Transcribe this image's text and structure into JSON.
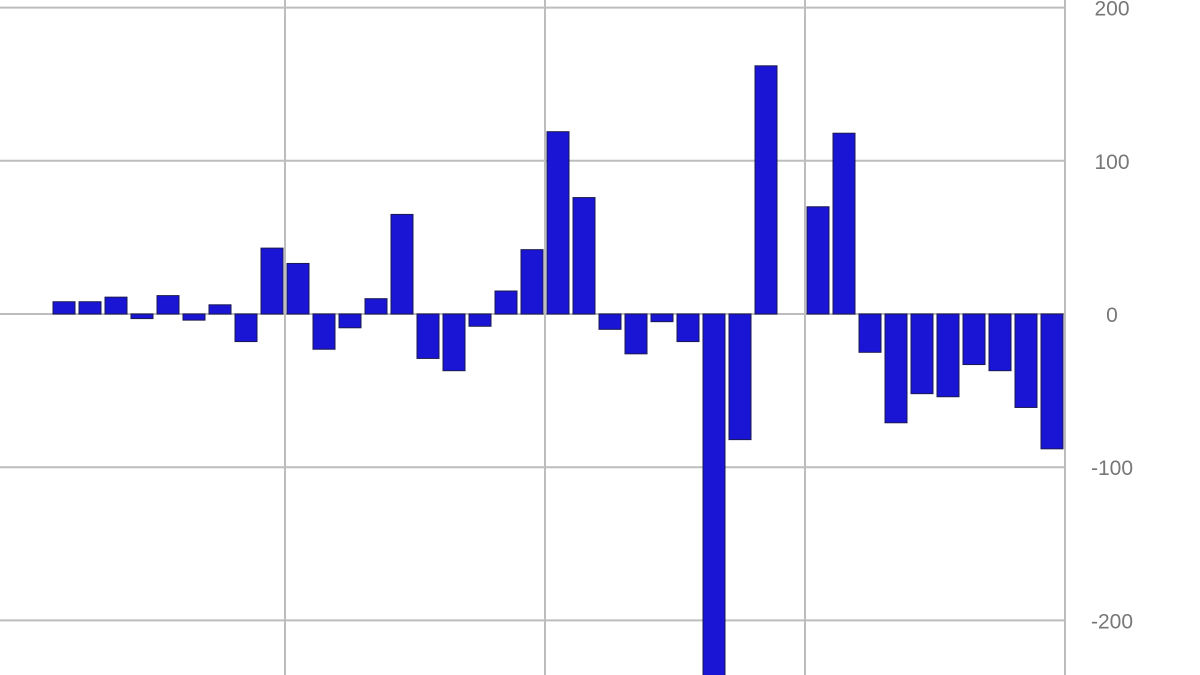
{
  "chart_data": {
    "type": "bar",
    "title": "",
    "xlabel": "",
    "ylabel": "",
    "ylim": [
      -235,
      205
    ],
    "yticks": [
      "200",
      "100",
      "0",
      "-100",
      "-200"
    ],
    "ytick_values": [
      200,
      100,
      0,
      -100,
      -200
    ],
    "y_axis_side": "right",
    "grid": true,
    "vertical_gridlines_after_bar": [
      9,
      19,
      29
    ],
    "bar_color": "#1a14d4",
    "bar_outline": "#1a1a50",
    "grid_color": "#bdbdbd",
    "values": [
      8,
      8,
      11,
      -3,
      12,
      -4,
      6,
      -18,
      43,
      33,
      -23,
      -9,
      10,
      65,
      -29,
      -37,
      -8,
      15,
      42,
      119,
      76,
      -10,
      -26,
      -5,
      -18,
      -250,
      -82,
      162,
      0,
      70,
      118,
      -25,
      -71,
      -52,
      -54,
      -33,
      -37,
      -61,
      -88
    ]
  }
}
